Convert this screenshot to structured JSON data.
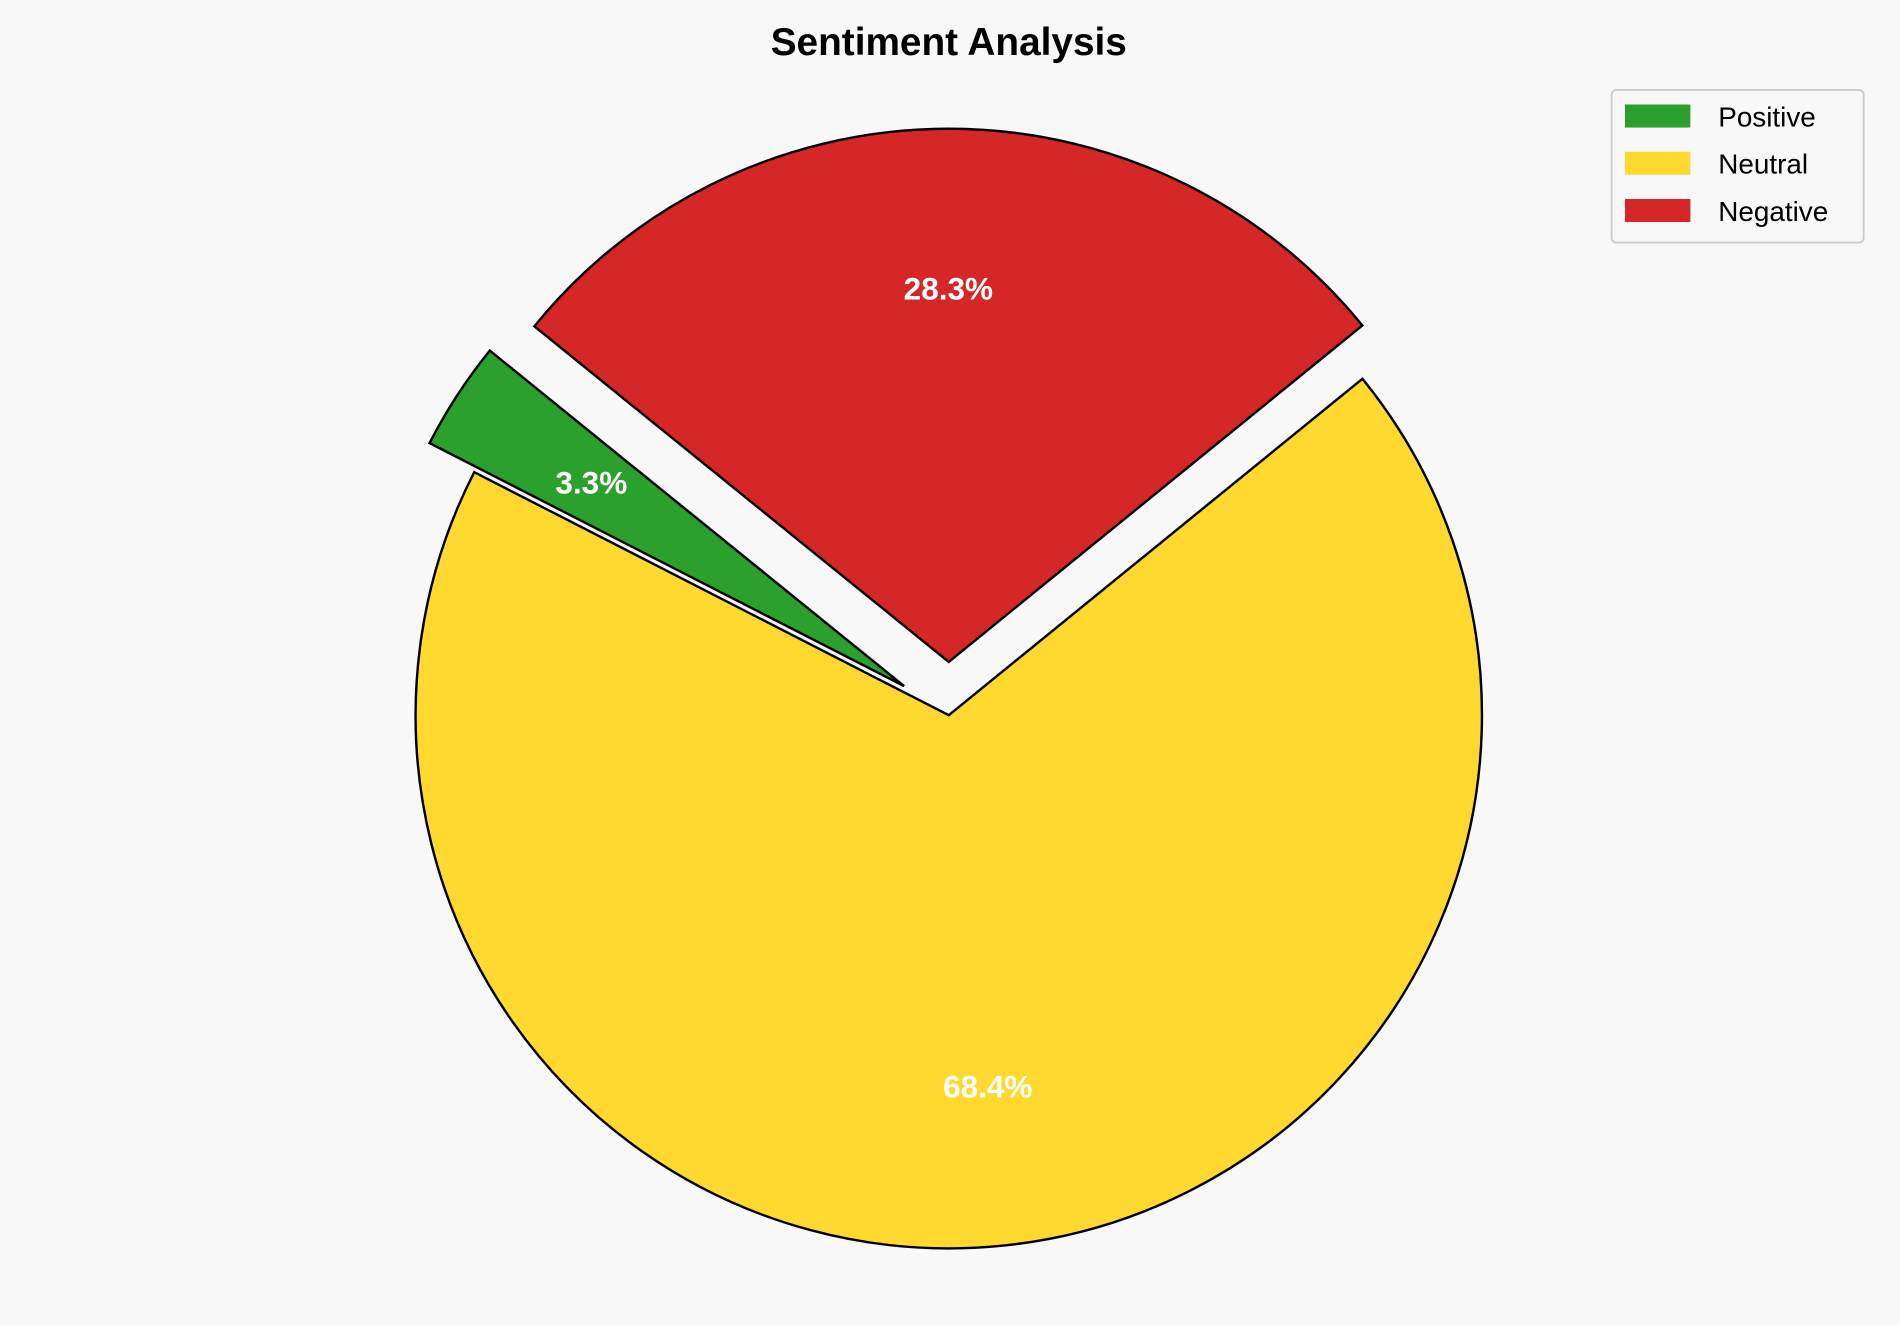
{
  "chart_data": {
    "type": "pie",
    "title": "Sentiment Analysis",
    "labels": [
      "Positive",
      "Neutral",
      "Negative"
    ],
    "values": [
      3.3,
      68.4,
      28.3
    ],
    "pct_labels": [
      "3.3%",
      "68.4%",
      "28.3%"
    ],
    "colors": [
      "#2ca02c",
      "#ffd92f",
      "#d62728"
    ],
    "explode": [
      0.1,
      0,
      0.1
    ],
    "startangle": 141,
    "counterclockwise": true,
    "legend_placement": "top-right",
    "edgecolor": "#000000"
  }
}
